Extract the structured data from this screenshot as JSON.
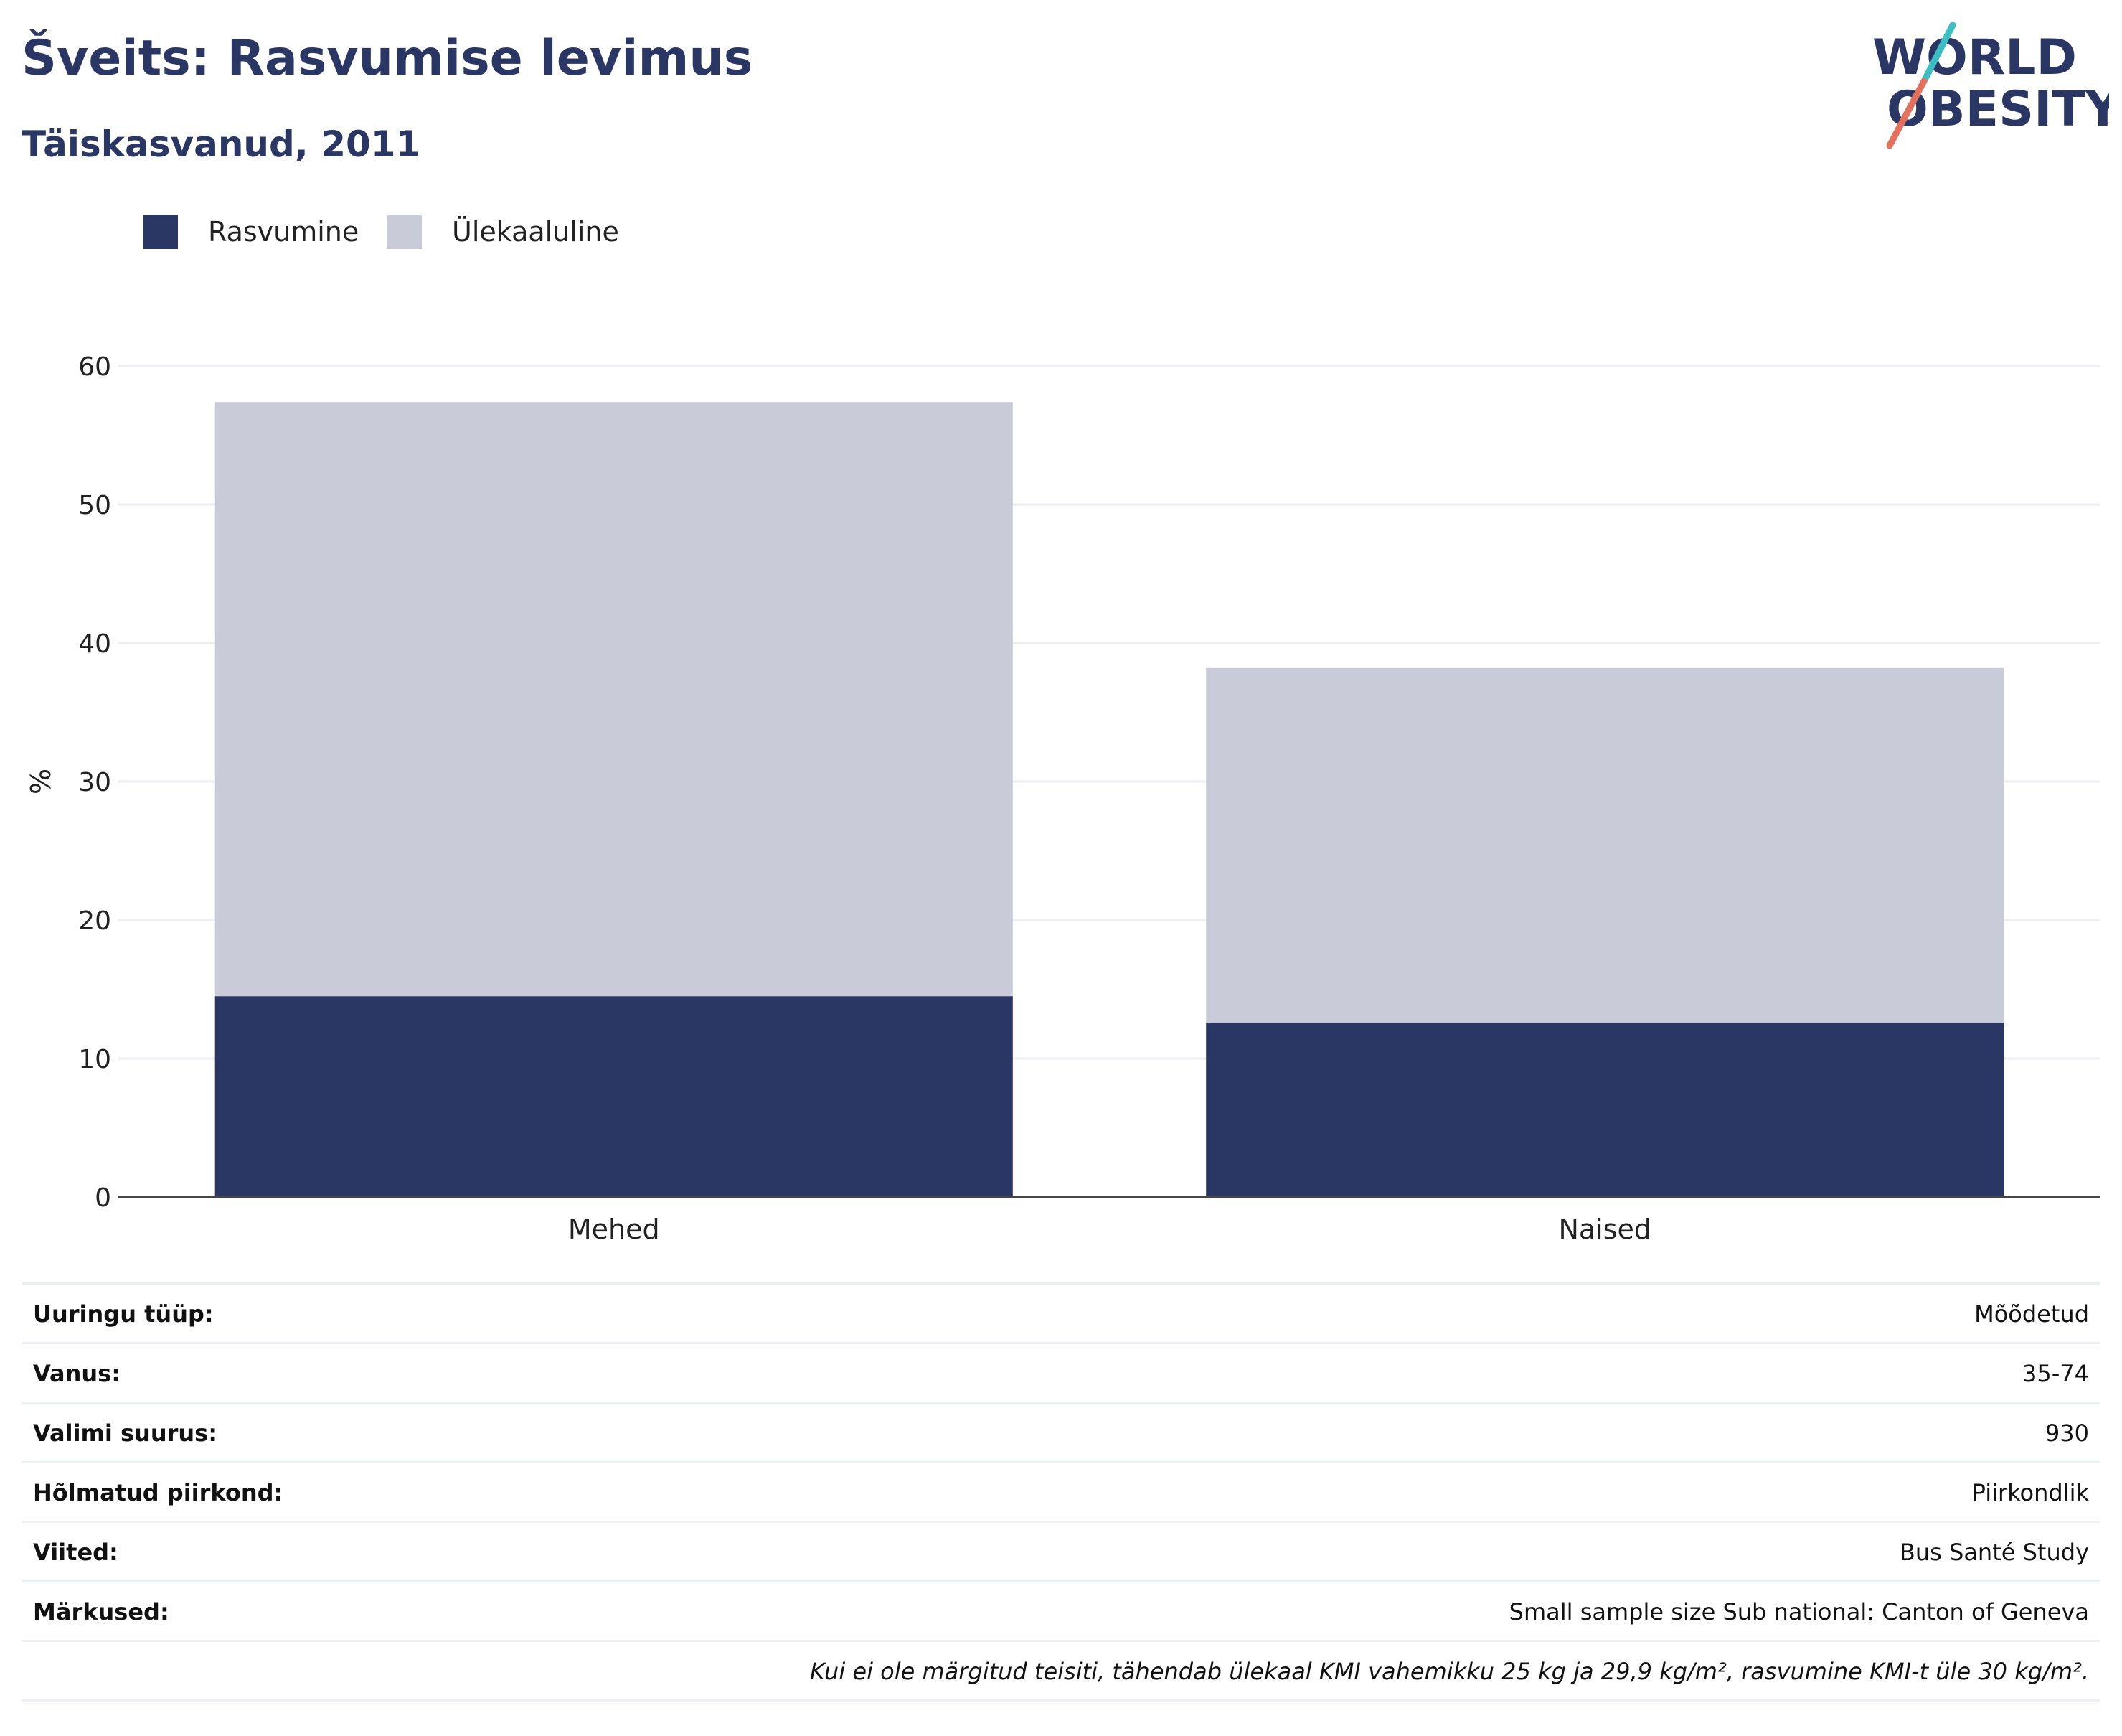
{
  "header": {
    "title": "Šveits: Rasvumise levimus",
    "subtitle": "Täiskasvanud, 2011"
  },
  "logo": {
    "line1": "WORLD",
    "line2": "OBESITY",
    "colors": {
      "text": "#2a3764",
      "slash_top": "#3cbfc4",
      "slash_bottom": "#e5705e"
    }
  },
  "colors": {
    "obesity": "#2a3764",
    "overweight": "#c9ccd8",
    "title": "#2a3764",
    "gridline": "#eceef2",
    "axis": "#444444"
  },
  "chart_data": {
    "type": "bar",
    "stacked": true,
    "categories": [
      "Mehed",
      "Naised"
    ],
    "series": [
      {
        "name": "Rasvumine",
        "color": "#2a3764",
        "values": [
          14.5,
          12.6
        ]
      },
      {
        "name": "Ülekaaluline",
        "color": "#c9ccd8",
        "values": [
          42.9,
          25.6
        ]
      }
    ],
    "ylabel": "%",
    "ylim": [
      0,
      60
    ],
    "yticks": [
      0,
      10,
      20,
      30,
      40,
      50,
      60
    ],
    "grid": true,
    "legend_position": "top-left"
  },
  "info": {
    "rows": [
      {
        "label": "Uuringu tüüp:",
        "value": "Mõõdetud"
      },
      {
        "label": "Vanus:",
        "value": "35-74"
      },
      {
        "label": "Valimi suurus:",
        "value": "930"
      },
      {
        "label": "Hõlmatud piirkond:",
        "value": "Piirkondlik"
      },
      {
        "label": "Viited:",
        "value": "Bus Santé Study"
      },
      {
        "label": "Märkused:",
        "value": "Small sample size Sub national: Canton of Geneva"
      }
    ],
    "footnote": "Kui ei ole märgitud teisiti, tähendab ülekaal KMI vahemikku 25 kg ja 29,9 kg/m², rasvumine KMI-t üle 30 kg/m²."
  }
}
